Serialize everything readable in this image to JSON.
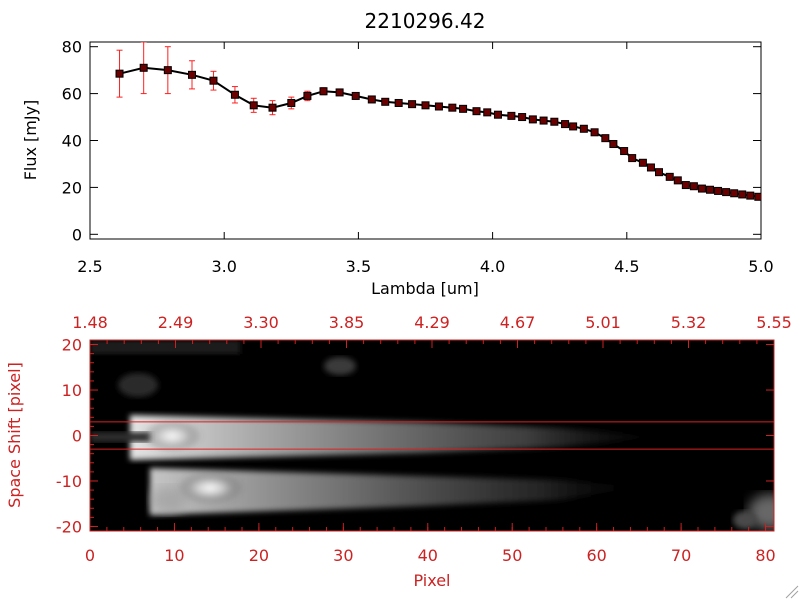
{
  "chart_data": [
    {
      "type": "line",
      "title": "2210296.42",
      "xlabel": "Lambda [um]",
      "ylabel": "Flux [mJy]",
      "xlim": [
        2.5,
        5.0
      ],
      "ylim": [
        -2,
        82
      ],
      "xticks": [
        "2.5",
        "3.0",
        "3.5",
        "4.0",
        "4.5",
        "5.0"
      ],
      "yticks": [
        "0",
        "20",
        "40",
        "60",
        "80"
      ],
      "line_color": "#000000",
      "marker_color": "#6b0000",
      "error_color": "#ff2020",
      "x": [
        2.61,
        2.7,
        2.79,
        2.88,
        2.96,
        3.04,
        3.11,
        3.18,
        3.25,
        3.31,
        3.37,
        3.43,
        3.49,
        3.55,
        3.6,
        3.65,
        3.7,
        3.75,
        3.8,
        3.85,
        3.89,
        3.94,
        3.98,
        4.02,
        4.07,
        4.11,
        4.15,
        4.19,
        4.23,
        4.27,
        4.3,
        4.34,
        4.38,
        4.42,
        4.45,
        4.49,
        4.52,
        4.56,
        4.59,
        4.62,
        4.66,
        4.69,
        4.72,
        4.75,
        4.78,
        4.81,
        4.84,
        4.87,
        4.9,
        4.93,
        4.96,
        4.99
      ],
      "y": [
        68.5,
        71,
        70,
        68,
        65.5,
        59.5,
        55,
        54,
        56,
        59,
        61,
        60.5,
        59,
        57.5,
        56.5,
        56,
        55.5,
        55,
        54.5,
        54,
        53.5,
        52.5,
        52,
        51,
        50.5,
        50,
        49,
        48.5,
        48,
        47,
        46,
        45,
        43.5,
        41,
        38.5,
        35.5,
        32.5,
        30.5,
        28.5,
        26.5,
        24.5,
        23,
        21,
        20.5,
        19.5,
        19,
        18.5,
        18,
        17.5,
        17,
        16.5,
        16
      ],
      "yerr": [
        10,
        11,
        10,
        6,
        4,
        3.5,
        3,
        3,
        2.5,
        2,
        1.5,
        0,
        0,
        0,
        0,
        0,
        0,
        0,
        0,
        0,
        0,
        0,
        0,
        0,
        0,
        0,
        0,
        0,
        0,
        0,
        0,
        0,
        0,
        0,
        0,
        0,
        0,
        0,
        0,
        0,
        0,
        0,
        0,
        0,
        0,
        0,
        0,
        0,
        0,
        0,
        0,
        0
      ]
    },
    {
      "type": "heatmap",
      "xlabel": "Pixel",
      "ylabel": "Space Shift [pixel]",
      "xlim": [
        0,
        81
      ],
      "ylim": [
        -21,
        21
      ],
      "xticks": [
        "0",
        "10",
        "20",
        "30",
        "40",
        "50",
        "60",
        "70",
        "80"
      ],
      "yticks": [
        "-20",
        "-10",
        "0",
        "10",
        "20"
      ],
      "top_ticks": [
        "1.48",
        "2.49",
        "3.30",
        "3.85",
        "4.29",
        "4.67",
        "5.01",
        "5.32",
        "5.55"
      ],
      "hlines": [
        3,
        -3
      ],
      "axis_color": "#cc2222",
      "background": "#000000"
    }
  ]
}
